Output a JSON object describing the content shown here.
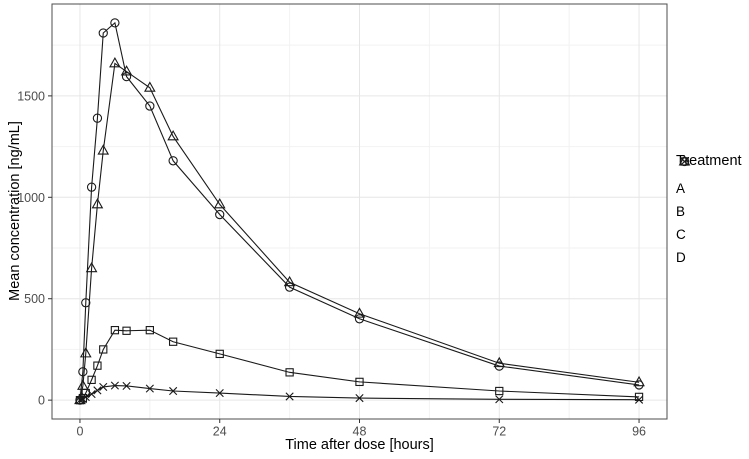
{
  "figure": {
    "background": "#ffffff"
  },
  "chart_data": {
    "type": "line",
    "title": "",
    "xlabel": "Time after dose [hours]",
    "ylabel": "Mean concentration [ng/mL]",
    "x": [
      0,
      0.5,
      1,
      2,
      3,
      4,
      6,
      8,
      12,
      16,
      24,
      36,
      48,
      72,
      96
    ],
    "series": [
      {
        "name": "A",
        "marker": "circle",
        "values": [
          0,
          140,
          480,
          1050,
          1390,
          1810,
          1860,
          1595,
          1450,
          1180,
          915,
          557,
          401,
          168,
          75
        ]
      },
      {
        "name": "B",
        "marker": "triangle",
        "values": [
          0,
          70,
          230,
          650,
          965,
          1230,
          1660,
          1620,
          1540,
          1300,
          965,
          581,
          426,
          182,
          88
        ]
      },
      {
        "name": "C",
        "marker": "square",
        "values": [
          0,
          10,
          35,
          100,
          170,
          250,
          345,
          342,
          345,
          288,
          228,
          137,
          90,
          45,
          16
        ]
      },
      {
        "name": "D",
        "marker": "x",
        "values": [
          0,
          5,
          15,
          30,
          48,
          65,
          72,
          70,
          57,
          45,
          35,
          18,
          10,
          4,
          2
        ]
      }
    ],
    "axes": {
      "x": {
        "ticks": [
          0,
          24,
          48,
          72,
          96
        ],
        "minor_ticks": [
          12,
          36,
          60,
          84
        ],
        "lim": [
          -4.8,
          100.8
        ]
      },
      "y": {
        "ticks": [
          0,
          500,
          1000,
          1500
        ],
        "minor_ticks": [
          250,
          750,
          1250,
          1750
        ],
        "lim": [
          -93,
          1953
        ]
      }
    },
    "legend": {
      "title": "Treatment",
      "position": "right",
      "entries": [
        "A",
        "B",
        "C",
        "D"
      ]
    },
    "grid": "on",
    "colors": {
      "line": "#1a1a1a",
      "grid_major": "#e6e6e6",
      "grid_minor": "#f2f2f2",
      "panel_border": "#4d4d4d",
      "tick_mark": "#333333",
      "tick_label": "#4d4d4d",
      "text": "#000000"
    }
  }
}
